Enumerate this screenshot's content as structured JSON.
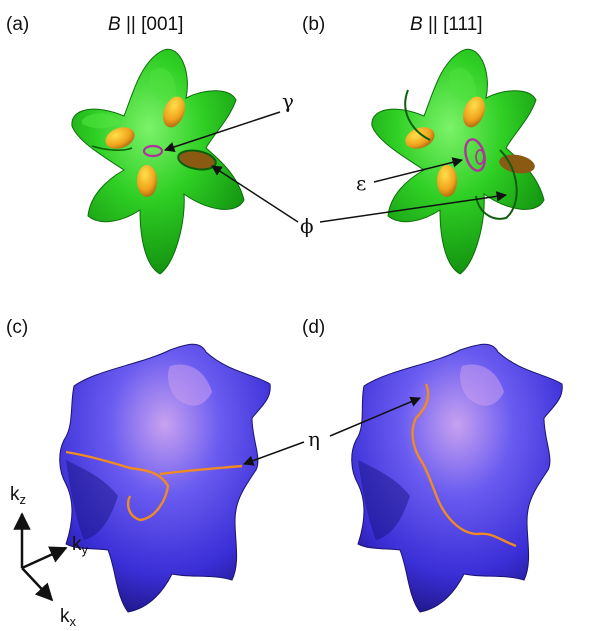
{
  "panels": {
    "a": {
      "label": "(a)",
      "field_prefix": "B",
      "field_suffix": " || [001]"
    },
    "b": {
      "label": "(b)",
      "field_prefix": "B",
      "field_suffix": " || [111]"
    },
    "c": {
      "label": "(c)"
    },
    "d": {
      "label": "(d)"
    }
  },
  "annotations": {
    "gamma": "γ",
    "epsilon": "ε",
    "phi": "ϕ",
    "eta": "η"
  },
  "axes": {
    "k": "k",
    "z_sub": "z",
    "y_sub": "y",
    "x_sub": "x"
  },
  "colors": {
    "green_surface": "#22c41c",
    "green_dark": "#0f7a0e",
    "orange_pocket": "#e8a21a",
    "orange_orbit": "#f08a24",
    "magenta_orbit": "#b0329c",
    "blue_surface": "#4b3fe0",
    "blue_dark": "#221a8a",
    "blue_highlight": "#d8a6e8"
  }
}
